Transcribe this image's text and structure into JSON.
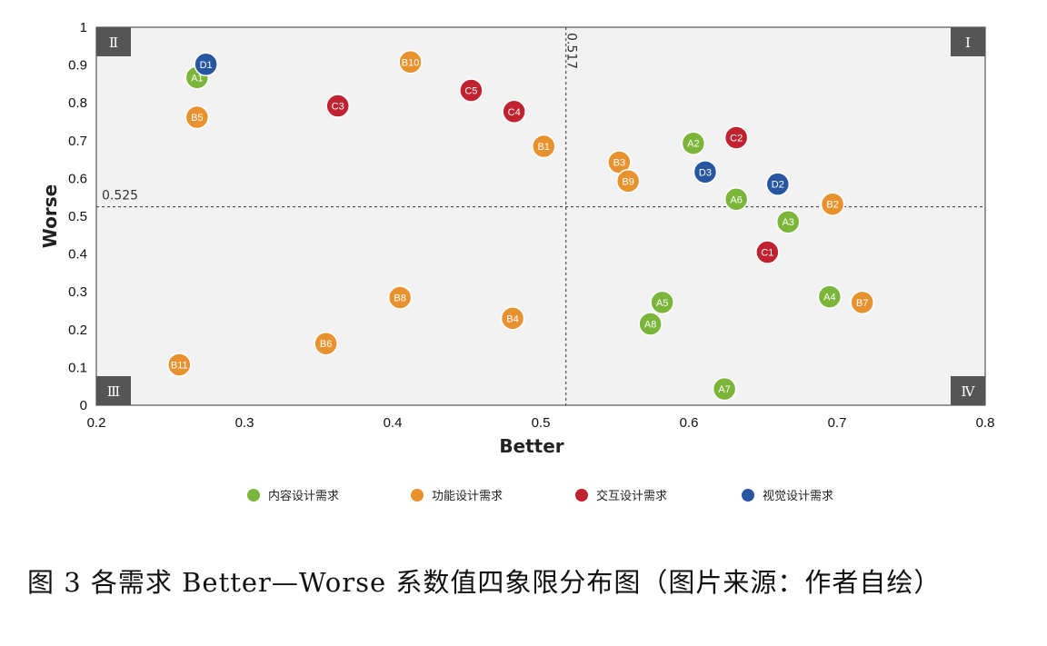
{
  "chart_data": {
    "type": "scatter",
    "xlabel": "Better",
    "ylabel": "Worse",
    "xlim": [
      0.2,
      0.8
    ],
    "ylim": [
      0,
      1
    ],
    "x_ticks": [
      "0.2",
      "0.3",
      "0.4",
      "0.5",
      "0.6",
      "0.7",
      "0.8"
    ],
    "y_ticks": [
      "0",
      "0.1",
      "0.2",
      "0.3",
      "0.4",
      "0.5",
      "0.6",
      "0.7",
      "0.8",
      "0.9",
      "1"
    ],
    "reference_lines": {
      "x": 0.517,
      "x_label": "0.517",
      "y": 0.525,
      "y_label": "0.525"
    },
    "quadrants": {
      "I": "Ⅰ",
      "II": "Ⅱ",
      "III": "Ⅲ",
      "IV": "Ⅳ"
    },
    "grid": false,
    "legend_position": "bottom",
    "series": [
      {
        "name": "内容设计需求",
        "color": "#7bb63a",
        "points": [
          {
            "label": "A1",
            "x": 0.268,
            "y": 0.867
          },
          {
            "label": "A2",
            "x": 0.603,
            "y": 0.693
          },
          {
            "label": "A3",
            "x": 0.667,
            "y": 0.485
          },
          {
            "label": "A4",
            "x": 0.695,
            "y": 0.287
          },
          {
            "label": "A5",
            "x": 0.582,
            "y": 0.272
          },
          {
            "label": "A6",
            "x": 0.632,
            "y": 0.545
          },
          {
            "label": "A7",
            "x": 0.624,
            "y": 0.043
          },
          {
            "label": "A8",
            "x": 0.574,
            "y": 0.215
          }
        ]
      },
      {
        "name": "功能设计需求",
        "color": "#e7922f",
        "points": [
          {
            "label": "B1",
            "x": 0.502,
            "y": 0.685
          },
          {
            "label": "B2",
            "x": 0.697,
            "y": 0.532
          },
          {
            "label": "B3",
            "x": 0.553,
            "y": 0.643
          },
          {
            "label": "B4",
            "x": 0.481,
            "y": 0.23
          },
          {
            "label": "B5",
            "x": 0.268,
            "y": 0.762
          },
          {
            "label": "B6",
            "x": 0.355,
            "y": 0.163
          },
          {
            "label": "B7",
            "x": 0.717,
            "y": 0.272
          },
          {
            "label": "B8",
            "x": 0.405,
            "y": 0.285
          },
          {
            "label": "B9",
            "x": 0.559,
            "y": 0.593
          },
          {
            "label": "B10",
            "x": 0.412,
            "y": 0.908
          },
          {
            "label": "B11",
            "x": 0.256,
            "y": 0.107
          }
        ]
      },
      {
        "name": "交互设计需求",
        "color": "#c0222f",
        "points": [
          {
            "label": "C1",
            "x": 0.653,
            "y": 0.405
          },
          {
            "label": "C2",
            "x": 0.632,
            "y": 0.708
          },
          {
            "label": "C3",
            "x": 0.363,
            "y": 0.792
          },
          {
            "label": "C4",
            "x": 0.482,
            "y": 0.777
          },
          {
            "label": "C5",
            "x": 0.453,
            "y": 0.833
          }
        ]
      },
      {
        "name": "视觉设计需求",
        "color": "#2757a0",
        "points": [
          {
            "label": "D1",
            "x": 0.274,
            "y": 0.902
          },
          {
            "label": "D2",
            "x": 0.66,
            "y": 0.585
          },
          {
            "label": "D3",
            "x": 0.611,
            "y": 0.617
          }
        ]
      }
    ]
  },
  "caption": "图 3 各需求 Better—Worse 系数值四象限分布图（图片来源：作者自绘）"
}
